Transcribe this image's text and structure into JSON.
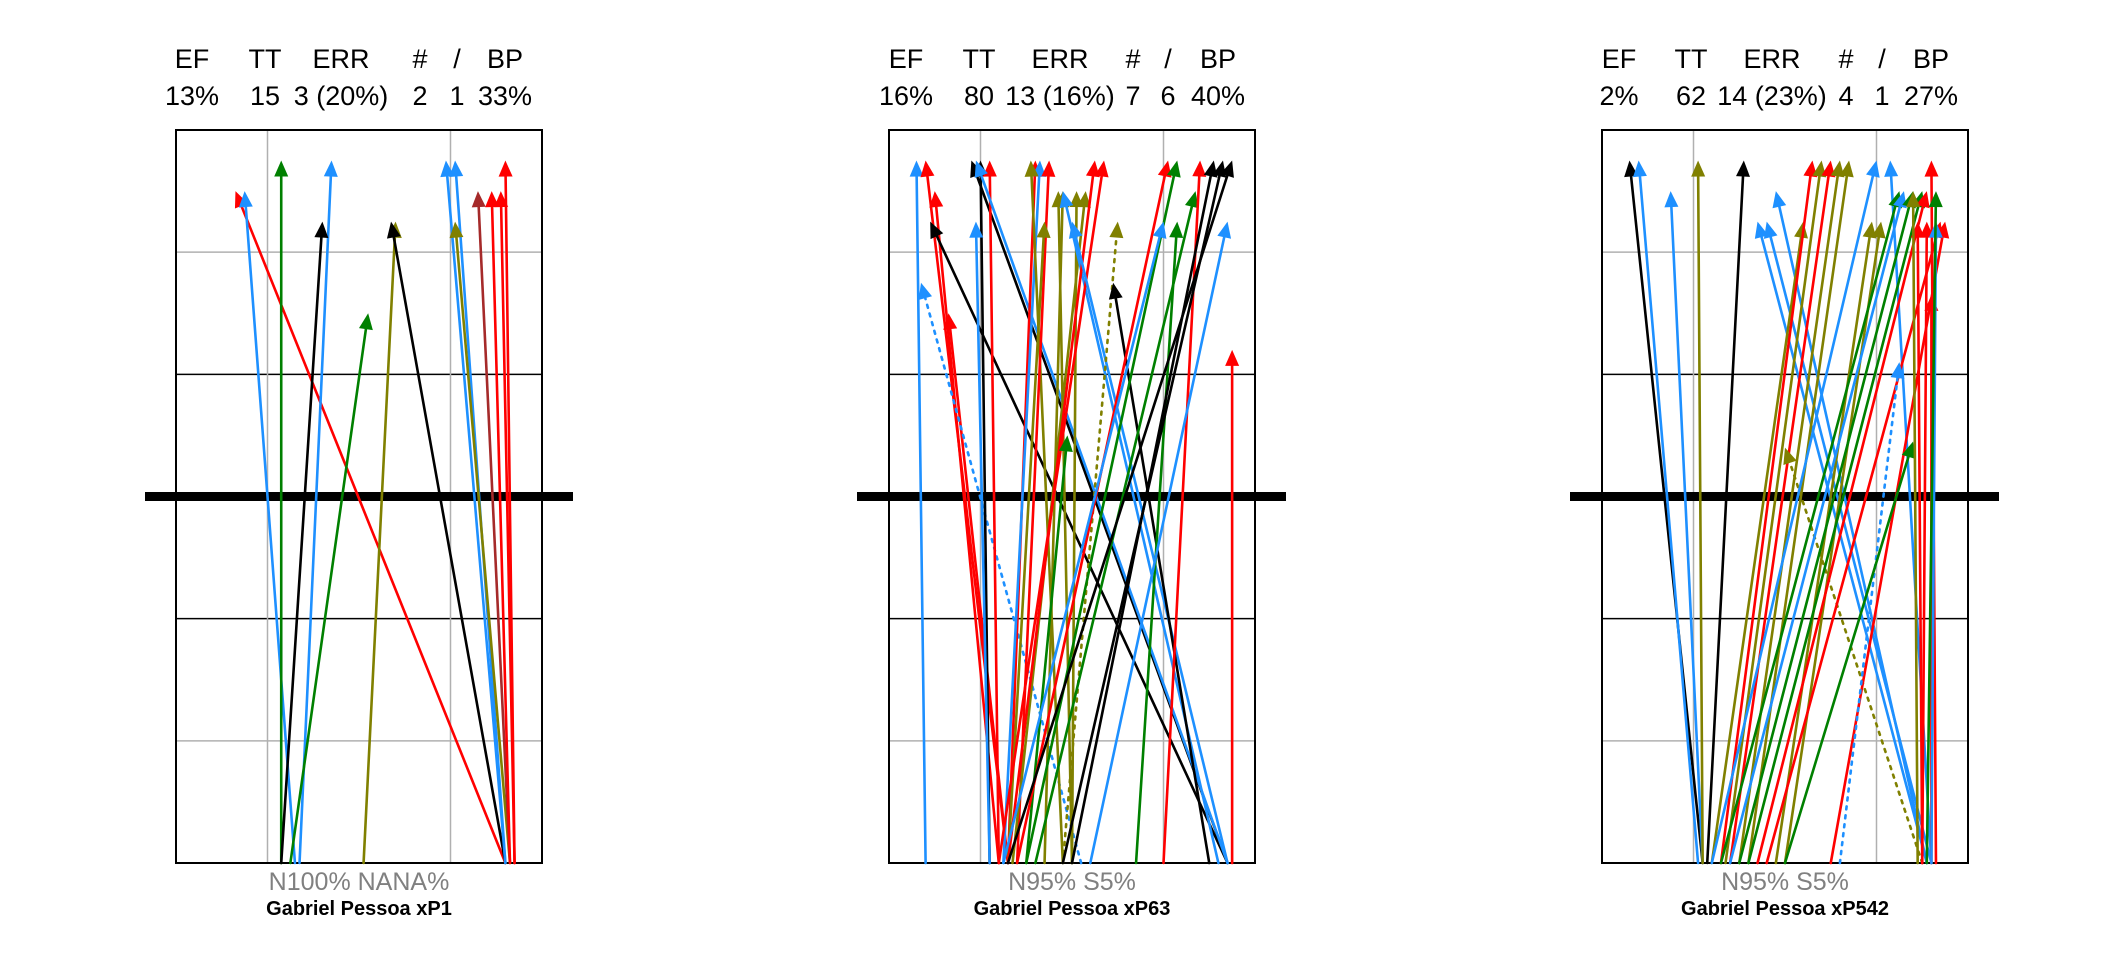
{
  "panels": [
    {
      "id": "p1",
      "headers": [
        "EF",
        "TT",
        "ERR",
        "#",
        "/",
        "BP"
      ],
      "values": [
        "13%",
        "15",
        "3 (20%)",
        "2",
        "1",
        "33%"
      ],
      "footer_stat": "N100%  NANA%",
      "footer_name": "Gabriel Pessoa  xP1"
    },
    {
      "id": "p2",
      "headers": [
        "EF",
        "TT",
        "ERR",
        "#",
        "/",
        "BP"
      ],
      "values": [
        "16%",
        "80",
        "13 (16%)",
        "7",
        "6",
        "40%"
      ],
      "footer_stat": "N95%  S5%",
      "footer_name": "Gabriel Pessoa  xP63"
    },
    {
      "id": "p3",
      "headers": [
        "EF",
        "TT",
        "ERR",
        "#",
        "/",
        "BP"
      ],
      "values": [
        "2%",
        "62",
        "14 (23%)",
        "4",
        "1",
        "27%"
      ],
      "footer_stat": "N95%  S5%",
      "footer_name": "Gabriel Pessoa  xP542"
    }
  ],
  "chart_data": [
    {
      "type": "scatter",
      "subtype": "arrows",
      "xlim": [
        0,
        4
      ],
      "ylim": [
        0,
        6
      ],
      "colors": {
        "blue": "#1e90ff",
        "green": "#008000",
        "red": "#ff0000",
        "black": "#000000",
        "olive": "#808000",
        "darkred": "#a52a2a"
      },
      "arrows": [
        {
          "x0": 3.6,
          "y0": 0,
          "x1": 0.65,
          "y1": 5.5,
          "color": "red"
        },
        {
          "x0": 1.3,
          "y0": 0,
          "x1": 0.75,
          "y1": 5.5,
          "color": "blue"
        },
        {
          "x0": 1.15,
          "y0": 0,
          "x1": 1.15,
          "y1": 5.75,
          "color": "green"
        },
        {
          "x0": 1.35,
          "y0": 0,
          "x1": 1.7,
          "y1": 5.75,
          "color": "blue"
        },
        {
          "x0": 1.15,
          "y0": 0,
          "x1": 1.6,
          "y1": 5.25,
          "color": "black"
        },
        {
          "x0": 1.25,
          "y0": 0,
          "x1": 2.1,
          "y1": 4.5,
          "color": "green"
        },
        {
          "x0": 2.05,
          "y0": 0,
          "x1": 2.4,
          "y1": 5.25,
          "color": "olive"
        },
        {
          "x0": 3.6,
          "y0": 0,
          "x1": 2.35,
          "y1": 5.25,
          "color": "black"
        },
        {
          "x0": 3.6,
          "y0": 0,
          "x1": 2.95,
          "y1": 5.75,
          "color": "blue"
        },
        {
          "x0": 3.6,
          "y0": 0,
          "x1": 3.05,
          "y1": 5.75,
          "color": "blue"
        },
        {
          "x0": 3.65,
          "y0": 0,
          "x1": 3.05,
          "y1": 5.25,
          "color": "olive"
        },
        {
          "x0": 3.65,
          "y0": 0,
          "x1": 3.3,
          "y1": 5.5,
          "color": "darkred"
        },
        {
          "x0": 3.65,
          "y0": 0,
          "x1": 3.45,
          "y1": 5.5,
          "color": "red"
        },
        {
          "x0": 3.7,
          "y0": 0,
          "x1": 3.55,
          "y1": 5.5,
          "color": "red"
        },
        {
          "x0": 3.7,
          "y0": 0,
          "x1": 3.6,
          "y1": 5.75,
          "color": "red"
        }
      ]
    },
    {
      "type": "scatter",
      "subtype": "arrows",
      "xlim": [
        0,
        4
      ],
      "ylim": [
        0,
        6
      ],
      "colors": {
        "blue": "#1e90ff",
        "green": "#008000",
        "red": "#ff0000",
        "black": "#000000",
        "olive": "#808000"
      },
      "arrows": [
        {
          "x0": 0.4,
          "y0": 0,
          "x1": 0.3,
          "y1": 5.75,
          "color": "blue"
        },
        {
          "x0": 1.2,
          "y0": 0,
          "x1": 0.5,
          "y1": 5.5,
          "color": "red"
        },
        {
          "x0": 1.3,
          "y0": 0,
          "x1": 0.4,
          "y1": 5.75,
          "color": "red"
        },
        {
          "x0": 3.7,
          "y0": 0,
          "x1": 0.45,
          "y1": 5.25,
          "color": "black"
        },
        {
          "x0": 1.3,
          "y0": 0,
          "x1": 0.65,
          "y1": 4.5,
          "color": "red"
        },
        {
          "x0": 2.1,
          "y0": 0,
          "x1": 0.35,
          "y1": 4.75,
          "color": "blue",
          "dotted": true
        },
        {
          "x0": 3.7,
          "y0": 0,
          "x1": 0.9,
          "y1": 5.75,
          "color": "black"
        },
        {
          "x0": 1.1,
          "y0": 0,
          "x1": 1.0,
          "y1": 5.75,
          "color": "black"
        },
        {
          "x0": 1.2,
          "y0": 0,
          "x1": 1.1,
          "y1": 5.75,
          "color": "red"
        },
        {
          "x0": 1.1,
          "y0": 0,
          "x1": 0.95,
          "y1": 5.25,
          "color": "blue"
        },
        {
          "x0": 3.7,
          "y0": 0,
          "x1": 0.95,
          "y1": 5.75,
          "color": "blue"
        },
        {
          "x0": 1.3,
          "y0": 0,
          "x1": 1.6,
          "y1": 5.75,
          "color": "red"
        },
        {
          "x0": 1.25,
          "y0": 0,
          "x1": 1.65,
          "y1": 5.75,
          "color": "blue"
        },
        {
          "x0": 1.9,
          "y0": 0,
          "x1": 1.55,
          "y1": 5.75,
          "color": "olive"
        },
        {
          "x0": 1.4,
          "y0": 0,
          "x1": 1.75,
          "y1": 5.75,
          "color": "red"
        },
        {
          "x0": 1.3,
          "y0": 0,
          "x1": 1.7,
          "y1": 5.25,
          "color": "olive"
        },
        {
          "x0": 2.0,
          "y0": 0,
          "x1": 1.85,
          "y1": 5.5,
          "color": "olive"
        },
        {
          "x0": 1.7,
          "y0": 0,
          "x1": 1.9,
          "y1": 5.5,
          "color": "olive"
        },
        {
          "x0": 2.0,
          "y0": 0,
          "x1": 2.05,
          "y1": 5.5,
          "color": "olive"
        },
        {
          "x0": 1.35,
          "y0": 0,
          "x1": 2.15,
          "y1": 5.5,
          "color": "olive"
        },
        {
          "x0": 3.6,
          "y0": 0,
          "x1": 1.9,
          "y1": 5.5,
          "color": "blue"
        },
        {
          "x0": 1.3,
          "y0": 0,
          "x1": 2.25,
          "y1": 5.75,
          "color": "red"
        },
        {
          "x0": 1.2,
          "y0": 0,
          "x1": 2.35,
          "y1": 5.75,
          "color": "red"
        },
        {
          "x0": 3.7,
          "y0": 0,
          "x1": 2.0,
          "y1": 5.25,
          "color": "blue"
        },
        {
          "x0": 1.9,
          "y0": 0,
          "x1": 2.5,
          "y1": 5.25,
          "color": "olive",
          "dotted": true
        },
        {
          "x0": 3.5,
          "y0": 0,
          "x1": 2.45,
          "y1": 4.75,
          "color": "black"
        },
        {
          "x0": 1.5,
          "y0": 0,
          "x1": 1.95,
          "y1": 3.5,
          "color": "green"
        },
        {
          "x0": 1.4,
          "y0": 0,
          "x1": 3.05,
          "y1": 5.75,
          "color": "red"
        },
        {
          "x0": 1.5,
          "y0": 0,
          "x1": 3.15,
          "y1": 5.75,
          "color": "green"
        },
        {
          "x0": 1.25,
          "y0": 0,
          "x1": 3.0,
          "y1": 5.25,
          "color": "blue"
        },
        {
          "x0": 2.7,
          "y0": 0,
          "x1": 3.15,
          "y1": 5.25,
          "color": "green"
        },
        {
          "x0": 1.6,
          "y0": 0,
          "x1": 3.35,
          "y1": 5.5,
          "color": "green"
        },
        {
          "x0": 3.0,
          "y0": 0,
          "x1": 3.4,
          "y1": 5.75,
          "color": "red"
        },
        {
          "x0": 2.0,
          "y0": 0,
          "x1": 3.55,
          "y1": 5.75,
          "color": "black"
        },
        {
          "x0": 1.9,
          "y0": 0,
          "x1": 3.65,
          "y1": 5.75,
          "color": "black"
        },
        {
          "x0": 1.3,
          "y0": 0,
          "x1": 3.75,
          "y1": 5.75,
          "color": "black"
        },
        {
          "x0": 2.2,
          "y0": 0,
          "x1": 3.7,
          "y1": 5.25,
          "color": "blue"
        },
        {
          "x0": 3.75,
          "y0": 0,
          "x1": 3.75,
          "y1": 4.2,
          "color": "red"
        }
      ]
    },
    {
      "type": "scatter",
      "subtype": "arrows",
      "xlim": [
        0,
        4
      ],
      "ylim": [
        0,
        6
      ],
      "colors": {
        "blue": "#1e90ff",
        "green": "#008000",
        "red": "#ff0000",
        "black": "#000000",
        "olive": "#808000"
      },
      "arrows": [
        {
          "x0": 1.1,
          "y0": 0,
          "x1": 0.3,
          "y1": 5.75,
          "color": "black"
        },
        {
          "x0": 1.05,
          "y0": 0,
          "x1": 0.4,
          "y1": 5.75,
          "color": "blue"
        },
        {
          "x0": 1.1,
          "y0": 0,
          "x1": 0.75,
          "y1": 5.5,
          "color": "blue"
        },
        {
          "x0": 1.1,
          "y0": 0,
          "x1": 1.05,
          "y1": 5.75,
          "color": "olive"
        },
        {
          "x0": 1.15,
          "y0": 0,
          "x1": 1.55,
          "y1": 5.75,
          "color": "black"
        },
        {
          "x0": 3.55,
          "y0": 0,
          "x1": 1.7,
          "y1": 5.25,
          "color": "blue"
        },
        {
          "x0": 3.6,
          "y0": 0,
          "x1": 1.8,
          "y1": 5.25,
          "color": "blue"
        },
        {
          "x0": 3.55,
          "y0": 0,
          "x1": 1.9,
          "y1": 5.5,
          "color": "blue"
        },
        {
          "x0": 1.2,
          "y0": 0,
          "x1": 2.2,
          "y1": 5.25,
          "color": "olive"
        },
        {
          "x0": 1.3,
          "y0": 0,
          "x1": 2.3,
          "y1": 5.75,
          "color": "red"
        },
        {
          "x0": 1.35,
          "y0": 0,
          "x1": 2.4,
          "y1": 5.75,
          "color": "olive"
        },
        {
          "x0": 1.4,
          "y0": 0,
          "x1": 2.5,
          "y1": 5.75,
          "color": "red"
        },
        {
          "x0": 1.5,
          "y0": 0,
          "x1": 2.6,
          "y1": 5.75,
          "color": "olive"
        },
        {
          "x0": 1.6,
          "y0": 0,
          "x1": 2.7,
          "y1": 5.75,
          "color": "olive"
        },
        {
          "x0": 3.5,
          "y0": 0,
          "x1": 2.0,
          "y1": 3.4,
          "color": "olive",
          "dotted": true
        },
        {
          "x0": 1.9,
          "y0": 0,
          "x1": 2.95,
          "y1": 5.25,
          "color": "olive"
        },
        {
          "x0": 2.0,
          "y0": 0,
          "x1": 3.05,
          "y1": 5.25,
          "color": "olive"
        },
        {
          "x0": 1.2,
          "y0": 0,
          "x1": 3.0,
          "y1": 5.75,
          "color": "blue"
        },
        {
          "x0": 3.6,
          "y0": 0,
          "x1": 3.15,
          "y1": 5.75,
          "color": "blue"
        },
        {
          "x0": 1.3,
          "y0": 0,
          "x1": 3.25,
          "y1": 5.5,
          "color": "green"
        },
        {
          "x0": 1.4,
          "y0": 0,
          "x1": 3.3,
          "y1": 5.5,
          "color": "blue"
        },
        {
          "x0": 1.5,
          "y0": 0,
          "x1": 3.4,
          "y1": 5.5,
          "color": "green"
        },
        {
          "x0": 1.6,
          "y0": 0,
          "x1": 3.5,
          "y1": 5.5,
          "color": "green"
        },
        {
          "x0": 1.7,
          "y0": 0,
          "x1": 3.55,
          "y1": 5.5,
          "color": "red"
        },
        {
          "x0": 3.65,
          "y0": 0,
          "x1": 3.6,
          "y1": 5.75,
          "color": "red"
        },
        {
          "x0": 1.8,
          "y0": 0,
          "x1": 3.7,
          "y1": 5.25,
          "color": "red"
        },
        {
          "x0": 3.5,
          "y0": 0,
          "x1": 3.55,
          "y1": 5.25,
          "color": "red"
        },
        {
          "x0": 2.5,
          "y0": 0,
          "x1": 3.75,
          "y1": 5.25,
          "color": "red"
        },
        {
          "x0": 3.6,
          "y0": 0,
          "x1": 3.6,
          "y1": 4.65,
          "color": "red"
        },
        {
          "x0": 2.6,
          "y0": 0,
          "x1": 3.25,
          "y1": 4.1,
          "color": "blue",
          "dotted": true
        },
        {
          "x0": 2.0,
          "y0": 0,
          "x1": 3.4,
          "y1": 3.45,
          "color": "green"
        },
        {
          "x0": 3.6,
          "y0": 0,
          "x1": 3.65,
          "y1": 5.25,
          "color": "blue"
        },
        {
          "x0": 3.5,
          "y0": 0,
          "x1": 3.45,
          "y1": 5.25,
          "color": "red"
        },
        {
          "x0": 3.45,
          "y0": 0,
          "x1": 3.4,
          "y1": 5.5,
          "color": "olive"
        },
        {
          "x0": 3.55,
          "y0": 0,
          "x1": 3.65,
          "y1": 5.5,
          "color": "green"
        }
      ]
    }
  ]
}
